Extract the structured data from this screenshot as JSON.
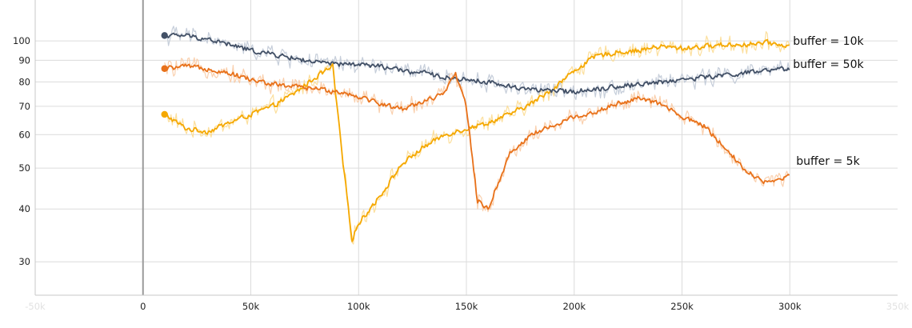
{
  "chart_data": {
    "type": "line",
    "title": "",
    "xlabel": "",
    "ylabel": "",
    "x_scale": "linear",
    "y_scale": "log",
    "xlim": [
      -50000,
      350000
    ],
    "ylim": [
      25,
      125
    ],
    "grid": true,
    "x_ticks": [
      {
        "value": -50000,
        "label": "-50k",
        "faded": true
      },
      {
        "value": 0,
        "label": "0",
        "faded": false
      },
      {
        "value": 50000,
        "label": "50k",
        "faded": false
      },
      {
        "value": 100000,
        "label": "100k",
        "faded": false
      },
      {
        "value": 150000,
        "label": "150k",
        "faded": false
      },
      {
        "value": 200000,
        "label": "200k",
        "faded": false
      },
      {
        "value": 250000,
        "label": "250k",
        "faded": false
      },
      {
        "value": 300000,
        "label": "300k",
        "faded": false
      },
      {
        "value": 350000,
        "label": "350k",
        "faded": true
      }
    ],
    "y_ticks": [
      30,
      40,
      50,
      60,
      70,
      80,
      90,
      100
    ],
    "series": [
      {
        "name": "buffer = 10k",
        "color": "#f5a800",
        "raw_color": "#fbd98c",
        "x": [
          10000,
          20000,
          30000,
          40000,
          50000,
          60000,
          70000,
          80000,
          88000,
          93000,
          97000,
          100000,
          110000,
          120000,
          130000,
          140000,
          150000,
          160000,
          170000,
          180000,
          190000,
          200000,
          210000,
          220000,
          230000,
          240000,
          250000,
          260000,
          270000,
          280000,
          290000,
          300000
        ],
        "values": [
          67,
          62,
          61,
          64,
          67,
          70,
          75,
          82,
          87,
          50,
          34,
          37,
          43,
          51,
          56,
          60,
          62,
          64,
          67,
          71,
          77,
          85,
          92,
          94,
          95,
          97,
          96,
          97,
          98,
          98,
          99,
          97
        ]
      },
      {
        "name": "buffer = 50k",
        "color": "#425066",
        "raw_color": "#bcc5d4",
        "x": [
          10000,
          20000,
          30000,
          40000,
          50000,
          60000,
          70000,
          80000,
          90000,
          100000,
          110000,
          120000,
          130000,
          140000,
          150000,
          160000,
          170000,
          180000,
          190000,
          200000,
          210000,
          220000,
          230000,
          240000,
          250000,
          260000,
          270000,
          280000,
          290000,
          300000
        ],
        "values": [
          103,
          103,
          101,
          98,
          95,
          93,
          91,
          89,
          88,
          88,
          87,
          85,
          84,
          82,
          81,
          80,
          78,
          77,
          76,
          76,
          77,
          78,
          79,
          80,
          81,
          82,
          83,
          84,
          85,
          86
        ]
      },
      {
        "name": "buffer = 5k",
        "color": "#e8711a",
        "raw_color": "#f9c8a0",
        "x": [
          10000,
          20000,
          30000,
          40000,
          50000,
          60000,
          70000,
          80000,
          90000,
          100000,
          110000,
          120000,
          130000,
          140000,
          145000,
          150000,
          155000,
          160000,
          170000,
          180000,
          190000,
          200000,
          210000,
          220000,
          230000,
          240000,
          250000,
          260000,
          270000,
          280000,
          290000,
          300000
        ],
        "values": [
          86,
          87,
          86,
          84,
          81,
          79,
          78,
          77,
          76,
          74,
          71,
          69,
          72,
          75,
          84,
          70,
          42,
          40,
          54,
          60,
          63,
          66,
          68,
          71,
          73,
          71,
          66,
          63,
          56,
          49,
          46,
          48
        ]
      }
    ]
  }
}
